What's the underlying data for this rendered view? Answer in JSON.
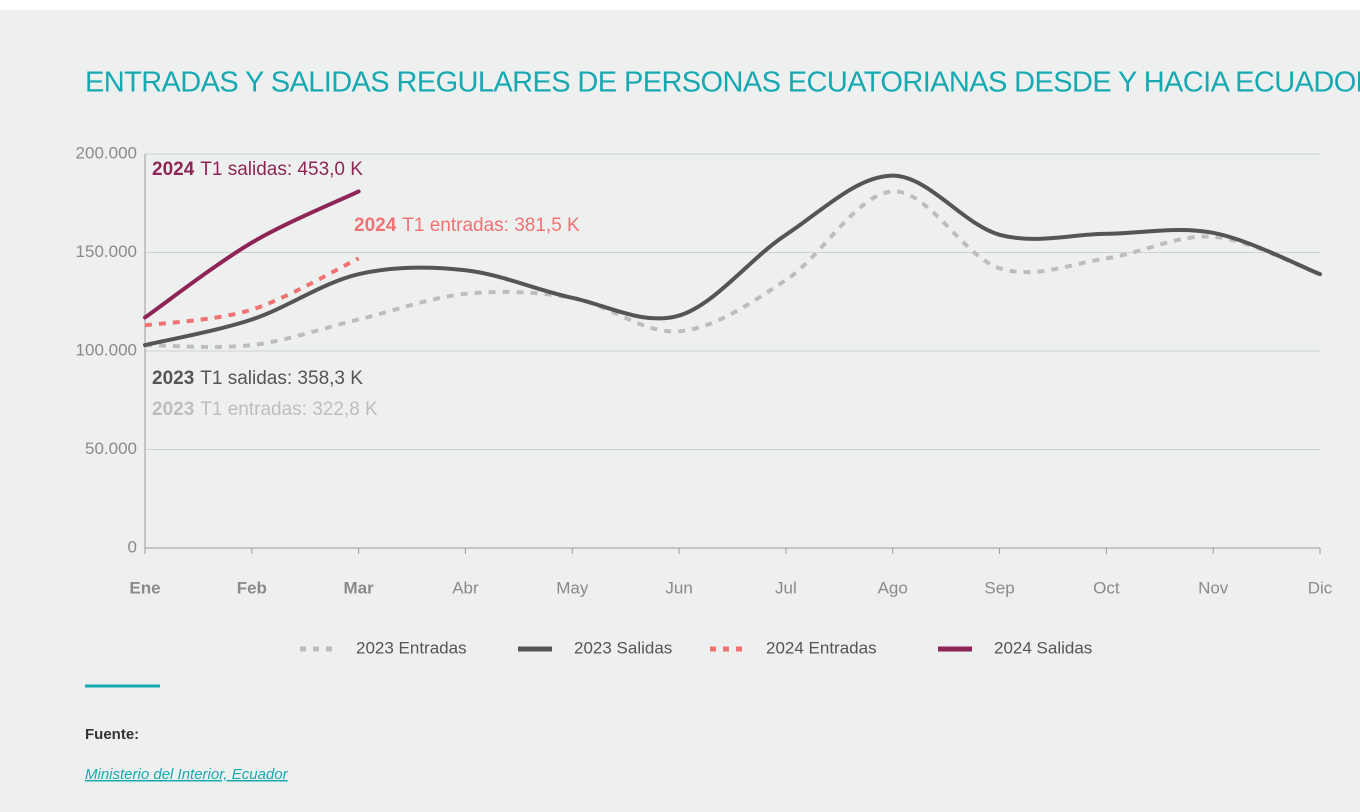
{
  "chart_data": {
    "type": "line",
    "title": "ENTRADAS Y SALIDAS REGULARES DE PERSONAS ECUATORIANAS DESDE Y HACIA ECUADOR",
    "categories": [
      "Ene",
      "Feb",
      "Mar",
      "Abr",
      "May",
      "Jun",
      "Jul",
      "Ago",
      "Sep",
      "Oct",
      "Nov",
      "Dic"
    ],
    "series": [
      {
        "name": "2023 Entradas",
        "color": "#bdbdbd",
        "dashed": true,
        "values": [
          103000,
          103000,
          116000,
          129000,
          127000,
          110000,
          136000,
          181000,
          142000,
          147000,
          158000,
          139000
        ]
      },
      {
        "name": "2023 Salidas",
        "color": "#555555",
        "dashed": false,
        "values": [
          103000,
          116000,
          139000,
          141000,
          127000,
          118000,
          159000,
          189000,
          159000,
          159500,
          160000,
          139000
        ]
      },
      {
        "name": "2024 Entradas",
        "color": "#f07272",
        "dashed": true,
        "values": [
          113000,
          121000,
          147000,
          null,
          null,
          null,
          null,
          null,
          null,
          null,
          null,
          null
        ]
      },
      {
        "name": "2024 Salidas",
        "color": "#8e2556",
        "dashed": false,
        "values": [
          117000,
          155000,
          181000,
          null,
          null,
          null,
          null,
          null,
          null,
          null,
          null,
          null
        ]
      }
    ],
    "ylim": [
      0,
      200000
    ],
    "yticks": [
      0,
      {
        "value": 50000,
        "label": "50.000"
      },
      {
        "value": 100000,
        "label": "100.000"
      },
      {
        "value": 150000,
        "label": "150.000"
      },
      {
        "value": 200000,
        "label": "200.000"
      }
    ],
    "grid": true,
    "legend": "bottom",
    "annotations": [
      {
        "year": "2024",
        "text": "T1 salidas: 453,0 K",
        "color": "#8e2556"
      },
      {
        "year": "2024",
        "text": "T1 entradas: 381,5 K",
        "color": "#f07272"
      },
      {
        "year": "2023",
        "text": "T1 salidas: 358,3 K",
        "color": "#555555"
      },
      {
        "year": "2023",
        "text": "T1 entradas: 322,8 K",
        "color": "#bdbdbd"
      }
    ]
  },
  "source": {
    "label": "Fuente:",
    "text": "Ministerio del Interior, Ecuador"
  }
}
